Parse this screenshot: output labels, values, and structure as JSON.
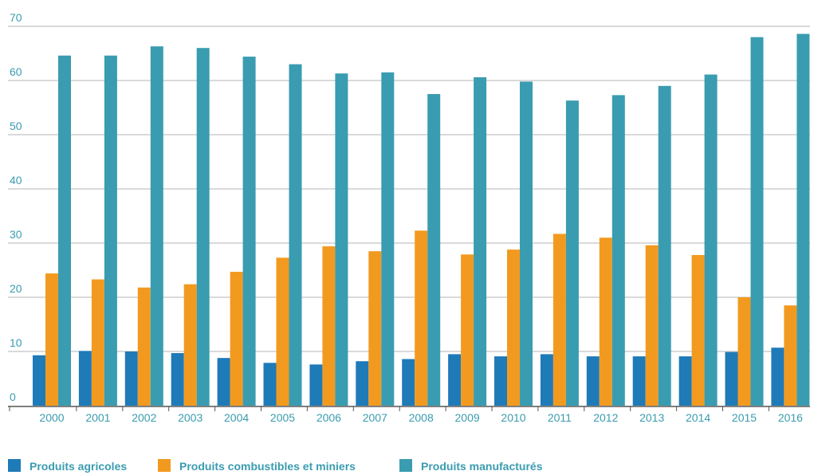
{
  "chart_data": {
    "type": "bar",
    "title": "",
    "xlabel": "",
    "ylabel": "",
    "ylim": [
      0,
      70
    ],
    "yticks": [
      0,
      10,
      20,
      30,
      40,
      50,
      60,
      70
    ],
    "grid": true,
    "legend_position": "bottom-left",
    "categories": [
      "2000",
      "2001",
      "2002",
      "2003",
      "2004",
      "2005",
      "2006",
      "2007",
      "2008",
      "2009",
      "2010",
      "2011",
      "2012",
      "2013",
      "2014",
      "2015",
      "2016"
    ],
    "series": [
      {
        "name": "Produits agricoles",
        "color": "#1f7ab8",
        "values": [
          9.3,
          10.1,
          10.0,
          9.7,
          8.8,
          7.9,
          7.6,
          8.2,
          8.6,
          9.5,
          9.1,
          9.5,
          9.1,
          9.1,
          9.1,
          9.9,
          10.7
        ]
      },
      {
        "name": "Produits combustibles et miniers",
        "color": "#f29a1f",
        "values": [
          24.4,
          23.3,
          21.8,
          22.4,
          24.7,
          27.3,
          29.4,
          28.5,
          32.3,
          27.9,
          28.8,
          31.7,
          31.0,
          29.6,
          27.8,
          20.0,
          18.5
        ]
      },
      {
        "name": "Produits manufacturés",
        "color": "#3a9cb0",
        "values": [
          64.6,
          64.6,
          66.3,
          66.0,
          64.4,
          63.0,
          61.3,
          61.5,
          57.5,
          60.6,
          59.8,
          56.3,
          57.3,
          59.0,
          61.1,
          68.0,
          68.6
        ]
      }
    ]
  }
}
